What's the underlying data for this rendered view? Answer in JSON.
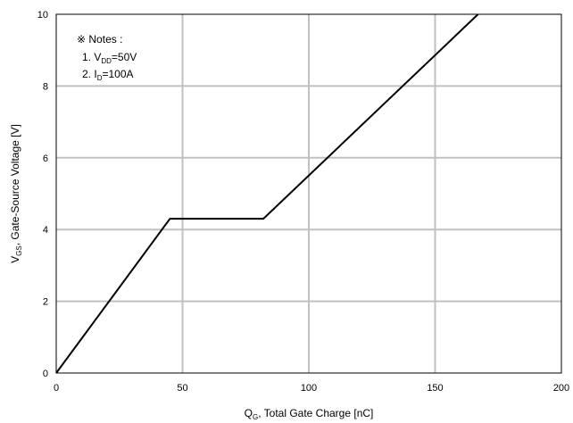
{
  "chart_data": {
    "type": "line",
    "x": [
      0,
      45,
      82,
      167
    ],
    "y": [
      0,
      4.3,
      4.3,
      10
    ],
    "xlim": [
      0,
      200
    ],
    "ylim": [
      0,
      10
    ],
    "x_ticks": [
      "0",
      "50",
      "100",
      "150",
      "200"
    ],
    "y_ticks": [
      "0",
      "2",
      "4",
      "6",
      "8",
      "10"
    ],
    "xlabel": {
      "main": "Q",
      "sub": "G",
      "rest": ", Total Gate Charge [nC]"
    },
    "ylabel": {
      "main": "V",
      "sub": "GS",
      "rest": ", Gate-Source Voltage [V]"
    },
    "grid": true,
    "notes": {
      "title": "※ Notes :",
      "line1": {
        "prefix": "1. V",
        "sub": "DD",
        "suffix": "=50V"
      },
      "line2": {
        "prefix": "2. I",
        "sub": "D",
        "suffix": "=100A"
      }
    },
    "line_color": "#000000",
    "grid_color": "#c0c0c0"
  }
}
